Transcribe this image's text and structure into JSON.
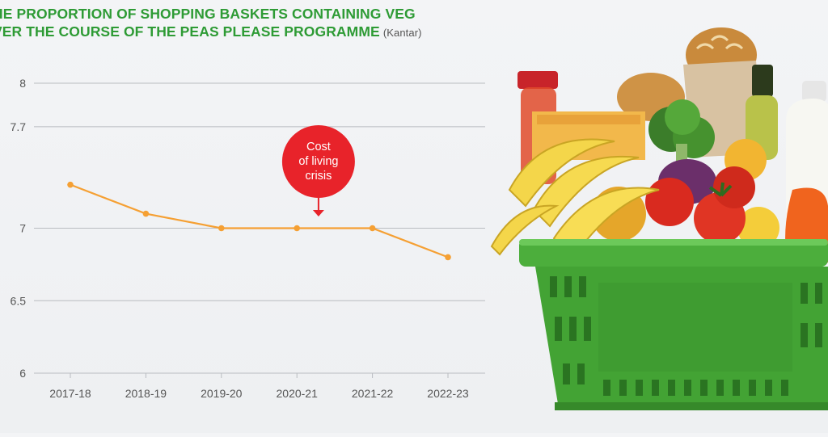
{
  "title": {
    "line1": "HE PROPORTION OF SHOPPING BASKETS CONTAINING VEG",
    "line2": "VER THE COURSE OF THE PEAS PLEASE PROGRAMME",
    "source": "(Kantar)"
  },
  "annotation": {
    "label_lines": [
      "Cost",
      "of living",
      "crisis"
    ],
    "category": "2020-21",
    "color": "#e8232a"
  },
  "colors": {
    "line": "#f5a033",
    "grid": "#b9bcc0",
    "axis_text": "#555555",
    "title": "#2e9b35",
    "basket": "#4cae3c"
  },
  "illustration": {
    "name": "shopping-basket-illustration"
  },
  "chart_data": {
    "type": "line",
    "categories": [
      "2017-18",
      "2018-19",
      "2019-20",
      "2020-21",
      "2021-22",
      "2022-23"
    ],
    "series": [
      {
        "values": [
          7.3,
          7.1,
          7.0,
          7.0,
          7.0,
          6.8
        ]
      }
    ],
    "yticks": [
      6,
      6.5,
      7,
      7.7,
      8
    ],
    "ylim": [
      6,
      8
    ],
    "grid": true,
    "legend": "none",
    "xlabel": "",
    "ylabel": ""
  }
}
